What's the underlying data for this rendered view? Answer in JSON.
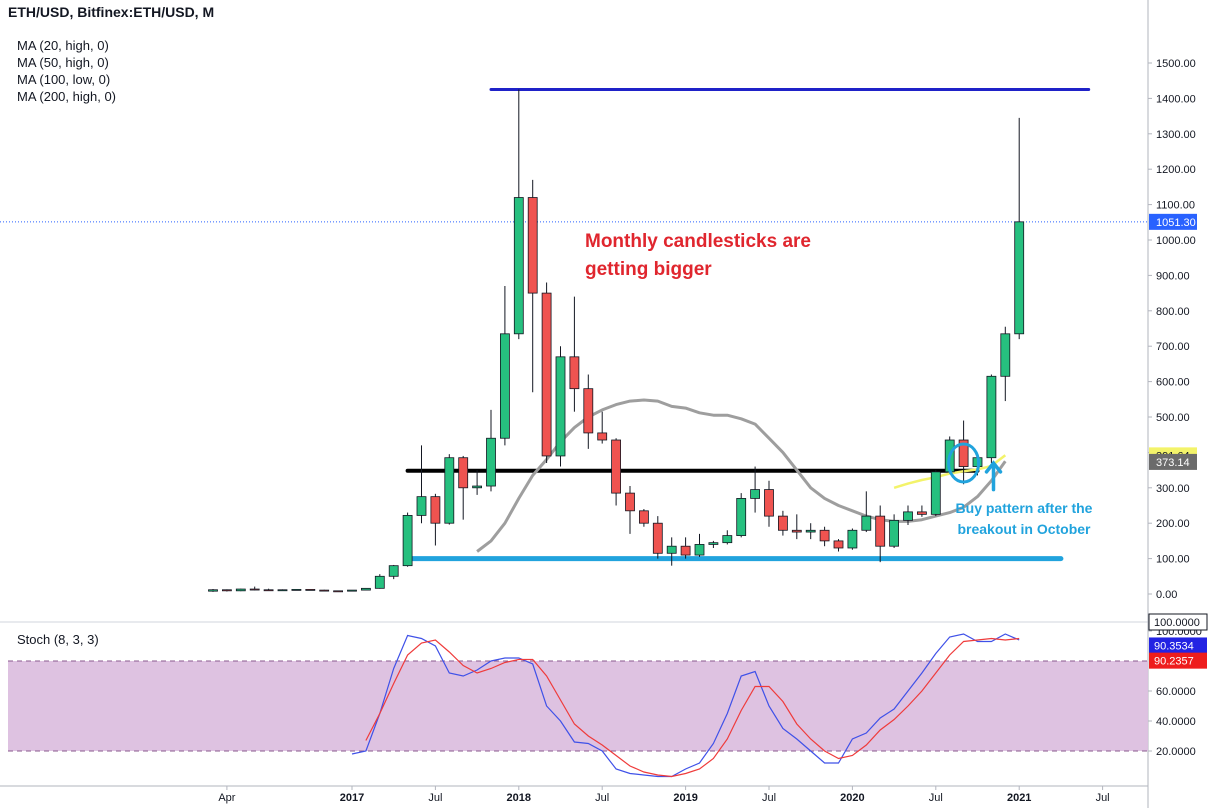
{
  "header": {
    "title": "ETH/USD, Bitfinex:ETH/USD, M"
  },
  "indicators": [
    "MA (20, high, 0)",
    "MA (50, high, 0)",
    "MA (100, low, 0)",
    "MA (200, high, 0)"
  ],
  "stoch": {
    "label": "Stoch (8, 3, 3)"
  },
  "annotations": {
    "red": [
      "Monthly candlesticks are",
      "getting bigger"
    ],
    "blue": [
      "Buy pattern after the",
      "breakout in October"
    ]
  },
  "colors": {
    "up": "#26c07f",
    "down": "#ef5350",
    "ma_gray": "#9e9e9e",
    "ma_yellow": "#f3f36a",
    "resistance_navy": "#1f22c8",
    "support_black": "#000000",
    "support_blue": "#21a3dd",
    "stoch_k": "#3f51e8",
    "stoch_d": "#ef3b3b",
    "stoch_band": "#dcbfdf"
  },
  "chart_data": {
    "type": "candlestick",
    "title": "ETH/USD, Bitfinex:ETH/USD, M",
    "price_axis": {
      "ticks": [
        "1500.00",
        "1400.00",
        "1300.00",
        "1200.00",
        "1100.00",
        "1000.00",
        "900.00",
        "800.00",
        "700.00",
        "600.00",
        "500.00",
        "400.00",
        "300.00",
        "200.00",
        "100.00",
        "0.00"
      ],
      "range": [
        -50,
        1560
      ]
    },
    "time_axis": {
      "labels": [
        {
          "label": "Apr",
          "date": "2016-04",
          "major": false
        },
        {
          "label": "2017",
          "date": "2017-01",
          "major": true
        },
        {
          "label": "Jul",
          "date": "2017-07",
          "major": false
        },
        {
          "label": "2018",
          "date": "2018-01",
          "major": true
        },
        {
          "label": "Jul",
          "date": "2018-07",
          "major": false
        },
        {
          "label": "2019",
          "date": "2019-01",
          "major": true
        },
        {
          "label": "Jul",
          "date": "2019-07",
          "major": false
        },
        {
          "label": "2020",
          "date": "2020-01",
          "major": true
        },
        {
          "label": "Jul",
          "date": "2020-07",
          "major": false
        },
        {
          "label": "2021",
          "date": "2021-01",
          "major": true
        },
        {
          "label": "Jul",
          "date": "2021-07",
          "major": false
        }
      ]
    },
    "candles": [
      {
        "date": "2016-03",
        "o": 8,
        "h": 14,
        "l": 6,
        "c": 12
      },
      {
        "date": "2016-04",
        "o": 12,
        "h": 13,
        "l": 7,
        "c": 9
      },
      {
        "date": "2016-05",
        "o": 9,
        "h": 15,
        "l": 8,
        "c": 14
      },
      {
        "date": "2016-06",
        "o": 14,
        "h": 21,
        "l": 10,
        "c": 12
      },
      {
        "date": "2016-07",
        "o": 12,
        "h": 15,
        "l": 9,
        "c": 11
      },
      {
        "date": "2016-08",
        "o": 11,
        "h": 13,
        "l": 10,
        "c": 12
      },
      {
        "date": "2016-09",
        "o": 12,
        "h": 14,
        "l": 11,
        "c": 13
      },
      {
        "date": "2016-10",
        "o": 13,
        "h": 14,
        "l": 10,
        "c": 11
      },
      {
        "date": "2016-11",
        "o": 11,
        "h": 12,
        "l": 8,
        "c": 9
      },
      {
        "date": "2016-12",
        "o": 9,
        "h": 9,
        "l": 6,
        "c": 8
      },
      {
        "date": "2017-01",
        "o": 8,
        "h": 11,
        "l": 7,
        "c": 11
      },
      {
        "date": "2017-02",
        "o": 11,
        "h": 17,
        "l": 10,
        "c": 16
      },
      {
        "date": "2017-03",
        "o": 16,
        "h": 56,
        "l": 15,
        "c": 50
      },
      {
        "date": "2017-04",
        "o": 50,
        "h": 82,
        "l": 42,
        "c": 80
      },
      {
        "date": "2017-05",
        "o": 80,
        "h": 230,
        "l": 77,
        "c": 222
      },
      {
        "date": "2017-06",
        "o": 222,
        "h": 420,
        "l": 200,
        "c": 275
      },
      {
        "date": "2017-07",
        "o": 275,
        "h": 283,
        "l": 137,
        "c": 200
      },
      {
        "date": "2017-08",
        "o": 200,
        "h": 395,
        "l": 196,
        "c": 385
      },
      {
        "date": "2017-09",
        "o": 385,
        "h": 390,
        "l": 210,
        "c": 300
      },
      {
        "date": "2017-10",
        "o": 300,
        "h": 350,
        "l": 280,
        "c": 305
      },
      {
        "date": "2017-11",
        "o": 305,
        "h": 520,
        "l": 290,
        "c": 440
      },
      {
        "date": "2017-12",
        "o": 440,
        "h": 870,
        "l": 420,
        "c": 735
      },
      {
        "date": "2018-01",
        "o": 735,
        "h": 1425,
        "l": 720,
        "c": 1120
      },
      {
        "date": "2018-02",
        "o": 1120,
        "h": 1170,
        "l": 570,
        "c": 850
      },
      {
        "date": "2018-03",
        "o": 850,
        "h": 880,
        "l": 370,
        "c": 390
      },
      {
        "date": "2018-04",
        "o": 390,
        "h": 700,
        "l": 360,
        "c": 670
      },
      {
        "date": "2018-05",
        "o": 670,
        "h": 840,
        "l": 515,
        "c": 580
      },
      {
        "date": "2018-06",
        "o": 580,
        "h": 620,
        "l": 410,
        "c": 455
      },
      {
        "date": "2018-07",
        "o": 455,
        "h": 515,
        "l": 425,
        "c": 435
      },
      {
        "date": "2018-08",
        "o": 435,
        "h": 440,
        "l": 250,
        "c": 285
      },
      {
        "date": "2018-09",
        "o": 285,
        "h": 305,
        "l": 170,
        "c": 235
      },
      {
        "date": "2018-10",
        "o": 235,
        "h": 240,
        "l": 190,
        "c": 200
      },
      {
        "date": "2018-11",
        "o": 200,
        "h": 220,
        "l": 100,
        "c": 115
      },
      {
        "date": "2018-12",
        "o": 115,
        "h": 160,
        "l": 80,
        "c": 135
      },
      {
        "date": "2019-01",
        "o": 135,
        "h": 160,
        "l": 100,
        "c": 110
      },
      {
        "date": "2019-02",
        "o": 110,
        "h": 170,
        "l": 105,
        "c": 140
      },
      {
        "date": "2019-03",
        "o": 140,
        "h": 150,
        "l": 130,
        "c": 145
      },
      {
        "date": "2019-04",
        "o": 145,
        "h": 180,
        "l": 140,
        "c": 165
      },
      {
        "date": "2019-05",
        "o": 165,
        "h": 285,
        "l": 160,
        "c": 270
      },
      {
        "date": "2019-06",
        "o": 270,
        "h": 360,
        "l": 230,
        "c": 295
      },
      {
        "date": "2019-07",
        "o": 295,
        "h": 320,
        "l": 190,
        "c": 220
      },
      {
        "date": "2019-08",
        "o": 220,
        "h": 235,
        "l": 165,
        "c": 180
      },
      {
        "date": "2019-09",
        "o": 180,
        "h": 225,
        "l": 155,
        "c": 175
      },
      {
        "date": "2019-10",
        "o": 175,
        "h": 200,
        "l": 155,
        "c": 180
      },
      {
        "date": "2019-11",
        "o": 180,
        "h": 190,
        "l": 135,
        "c": 150
      },
      {
        "date": "2019-12",
        "o": 150,
        "h": 155,
        "l": 120,
        "c": 130
      },
      {
        "date": "2020-01",
        "o": 130,
        "h": 185,
        "l": 125,
        "c": 180
      },
      {
        "date": "2020-02",
        "o": 180,
        "h": 290,
        "l": 175,
        "c": 220
      },
      {
        "date": "2020-03",
        "o": 220,
        "h": 250,
        "l": 90,
        "c": 135
      },
      {
        "date": "2020-04",
        "o": 135,
        "h": 225,
        "l": 130,
        "c": 208
      },
      {
        "date": "2020-05",
        "o": 208,
        "h": 250,
        "l": 195,
        "c": 232
      },
      {
        "date": "2020-06",
        "o": 232,
        "h": 250,
        "l": 218,
        "c": 225
      },
      {
        "date": "2020-07",
        "o": 225,
        "h": 350,
        "l": 220,
        "c": 345
      },
      {
        "date": "2020-08",
        "o": 345,
        "h": 445,
        "l": 340,
        "c": 435
      },
      {
        "date": "2020-09",
        "o": 435,
        "h": 490,
        "l": 310,
        "c": 360
      },
      {
        "date": "2020-10",
        "o": 360,
        "h": 395,
        "l": 335,
        "c": 385
      },
      {
        "date": "2020-11",
        "o": 385,
        "h": 620,
        "l": 370,
        "c": 615
      },
      {
        "date": "2020-12",
        "o": 615,
        "h": 755,
        "l": 545,
        "c": 735
      },
      {
        "date": "2021-01",
        "o": 735,
        "h": 1345,
        "l": 720,
        "c": 1051.3
      }
    ],
    "moving_averages": [
      {
        "color": "#9e9e9e",
        "points": [
          [
            "2017-10",
            120
          ],
          [
            "2017-11",
            150
          ],
          [
            "2017-12",
            200
          ],
          [
            "2018-01",
            270
          ],
          [
            "2018-02",
            335
          ],
          [
            "2018-03",
            380
          ],
          [
            "2018-04",
            430
          ],
          [
            "2018-05",
            470
          ],
          [
            "2018-06",
            500
          ],
          [
            "2018-07",
            520
          ],
          [
            "2018-08",
            535
          ],
          [
            "2018-09",
            545
          ],
          [
            "2018-10",
            548
          ],
          [
            "2018-11",
            545
          ],
          [
            "2018-12",
            530
          ],
          [
            "2019-01",
            525
          ],
          [
            "2019-02",
            512
          ],
          [
            "2019-03",
            505
          ],
          [
            "2019-04",
            505
          ],
          [
            "2019-05",
            495
          ],
          [
            "2019-06",
            480
          ],
          [
            "2019-07",
            440
          ],
          [
            "2019-08",
            400
          ],
          [
            "2019-09",
            350
          ],
          [
            "2019-10",
            300
          ],
          [
            "2019-11",
            270
          ],
          [
            "2019-12",
            250
          ],
          [
            "2020-01",
            235
          ],
          [
            "2020-02",
            220
          ],
          [
            "2020-03",
            210
          ],
          [
            "2020-04",
            205
          ],
          [
            "2020-05",
            205
          ],
          [
            "2020-06",
            210
          ],
          [
            "2020-07",
            220
          ],
          [
            "2020-08",
            230
          ],
          [
            "2020-09",
            245
          ],
          [
            "2020-10",
            275
          ],
          [
            "2020-11",
            320
          ],
          [
            "2020-12",
            375
          ]
        ]
      },
      {
        "color": "#f3f36a",
        "points": [
          [
            "2020-04",
            300
          ],
          [
            "2020-05",
            312
          ],
          [
            "2020-06",
            322
          ],
          [
            "2020-07",
            330
          ],
          [
            "2020-08",
            340
          ],
          [
            "2020-09",
            347
          ],
          [
            "2020-10",
            352
          ],
          [
            "2020-11",
            362
          ],
          [
            "2020-12",
            392
          ]
        ]
      }
    ],
    "horizontal_lines": [
      {
        "value": 1425,
        "from": "2017-11",
        "to": "2021-06",
        "color": "#1f22c8"
      },
      {
        "value": 348,
        "from": "2017-05",
        "to": "2020-10",
        "color": "#000000"
      },
      {
        "value": 100,
        "from": "2017-05",
        "to": "2021-04",
        "color": "#21a3dd"
      }
    ],
    "last_price": 1051.3,
    "price_badges": [
      {
        "label": "1051.30",
        "value": 1051.3,
        "bg": "#2962ff",
        "fg": "#ffffff"
      },
      {
        "label": "391.64",
        "value": 391.64,
        "bg": "#f3f36a",
        "fg": "#131722"
      },
      {
        "label": "373.14",
        "value": 373.14,
        "bg": "#6b6b6b",
        "fg": "#ffffff"
      }
    ],
    "stochastic": {
      "axis_ticks": [
        "100.0000",
        "60.0000",
        "40.0000",
        "20.0000"
      ],
      "range": [
        -4,
        108
      ],
      "bands": [
        20,
        80
      ],
      "k": [
        [
          "2017-01",
          18
        ],
        [
          "2017-02",
          20
        ],
        [
          "2017-03",
          45
        ],
        [
          "2017-04",
          75
        ],
        [
          "2017-05",
          97
        ],
        [
          "2017-06",
          95
        ],
        [
          "2017-07",
          90
        ],
        [
          "2017-08",
          72
        ],
        [
          "2017-09",
          70
        ],
        [
          "2017-10",
          74
        ],
        [
          "2017-11",
          80
        ],
        [
          "2017-12",
          82
        ],
        [
          "2018-01",
          82
        ],
        [
          "2018-02",
          78
        ],
        [
          "2018-03",
          50
        ],
        [
          "2018-04",
          40
        ],
        [
          "2018-05",
          26
        ],
        [
          "2018-06",
          25
        ],
        [
          "2018-07",
          20
        ],
        [
          "2018-08",
          8
        ],
        [
          "2018-09",
          5
        ],
        [
          "2018-10",
          4
        ],
        [
          "2018-11",
          3
        ],
        [
          "2018-12",
          3
        ],
        [
          "2019-01",
          8
        ],
        [
          "2019-02",
          12
        ],
        [
          "2019-03",
          25
        ],
        [
          "2019-04",
          45
        ],
        [
          "2019-05",
          70
        ],
        [
          "2019-06",
          73
        ],
        [
          "2019-07",
          50
        ],
        [
          "2019-08",
          35
        ],
        [
          "2019-09",
          28
        ],
        [
          "2019-10",
          20
        ],
        [
          "2019-11",
          12
        ],
        [
          "2019-12",
          12
        ],
        [
          "2020-01",
          28
        ],
        [
          "2020-02",
          32
        ],
        [
          "2020-03",
          42
        ],
        [
          "2020-04",
          48
        ],
        [
          "2020-05",
          60
        ],
        [
          "2020-06",
          72
        ],
        [
          "2020-07",
          85
        ],
        [
          "2020-08",
          96
        ],
        [
          "2020-09",
          98
        ],
        [
          "2020-10",
          93
        ],
        [
          "2020-11",
          93
        ],
        [
          "2020-12",
          98
        ],
        [
          "2021-01",
          94
        ]
      ],
      "d": [
        [
          "2017-02",
          27
        ],
        [
          "2017-03",
          45
        ],
        [
          "2017-04",
          65
        ],
        [
          "2017-05",
          84
        ],
        [
          "2017-06",
          92
        ],
        [
          "2017-07",
          94
        ],
        [
          "2017-08",
          86
        ],
        [
          "2017-09",
          77
        ],
        [
          "2017-10",
          72
        ],
        [
          "2017-11",
          75
        ],
        [
          "2017-12",
          79
        ],
        [
          "2018-01",
          81
        ],
        [
          "2018-02",
          81
        ],
        [
          "2018-03",
          70
        ],
        [
          "2018-04",
          54
        ],
        [
          "2018-05",
          38
        ],
        [
          "2018-06",
          30
        ],
        [
          "2018-07",
          24
        ],
        [
          "2018-08",
          17
        ],
        [
          "2018-09",
          10
        ],
        [
          "2018-10",
          6
        ],
        [
          "2018-11",
          4
        ],
        [
          "2018-12",
          3
        ],
        [
          "2019-01",
          5
        ],
        [
          "2019-02",
          8
        ],
        [
          "2019-03",
          15
        ],
        [
          "2019-04",
          28
        ],
        [
          "2019-05",
          47
        ],
        [
          "2019-06",
          63
        ],
        [
          "2019-07",
          63
        ],
        [
          "2019-08",
          53
        ],
        [
          "2019-09",
          38
        ],
        [
          "2019-10",
          28
        ],
        [
          "2019-11",
          20
        ],
        [
          "2019-12",
          15
        ],
        [
          "2020-01",
          17
        ],
        [
          "2020-02",
          24
        ],
        [
          "2020-03",
          34
        ],
        [
          "2020-04",
          41
        ],
        [
          "2020-05",
          50
        ],
        [
          "2020-06",
          60
        ],
        [
          "2020-07",
          72
        ],
        [
          "2020-08",
          84
        ],
        [
          "2020-09",
          93
        ],
        [
          "2020-10",
          94
        ],
        [
          "2020-11",
          95
        ],
        [
          "2020-12",
          94
        ],
        [
          "2021-01",
          95
        ]
      ],
      "badges": [
        {
          "label": "100.0000",
          "value": 100,
          "bg": "#ffffff",
          "fg": "#131722",
          "border": "#131722"
        },
        {
          "label": "90.3534",
          "value": 90.3534,
          "bg": "#2323e3",
          "fg": "#ffffff",
          "border": ""
        },
        {
          "label": "90.2357",
          "value": 90.2357,
          "bg": "#ee1d1d",
          "fg": "#ffffff",
          "border": ""
        }
      ]
    }
  }
}
